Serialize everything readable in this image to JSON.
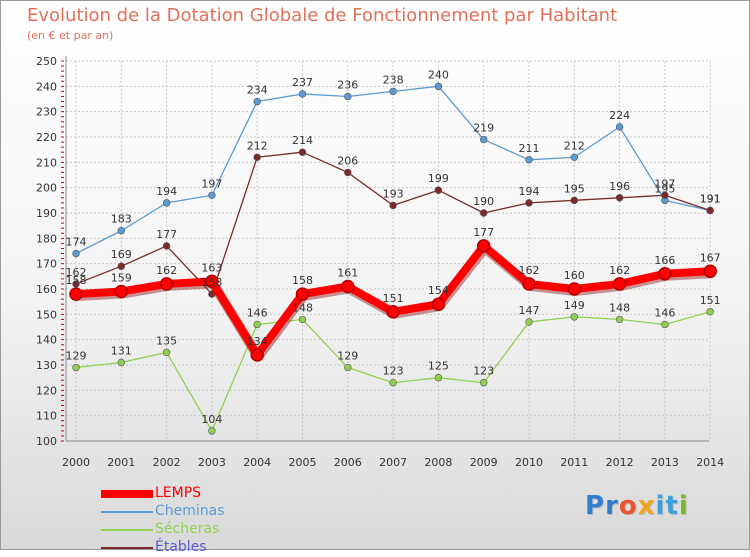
{
  "header": {
    "title": "Evolution de la Dotation Globale de Fonctionnement par Habitant",
    "subtitle": "(en € et par an)"
  },
  "branding": {
    "logo_letters": [
      {
        "ch": "P",
        "color": "#2f7fd0"
      },
      {
        "ch": "r",
        "color": "#2f7fd0"
      },
      {
        "ch": "o",
        "color": "#e8552e"
      },
      {
        "ch": "x",
        "color": "#f2a41c"
      },
      {
        "ch": "i",
        "color": "#3aa2d8"
      },
      {
        "ch": "t",
        "color": "#3aa2d8"
      },
      {
        "ch": "i",
        "color": "#7ab82e"
      }
    ]
  },
  "chart_data": {
    "type": "line",
    "title": "Evolution de la Dotation Globale de Fonctionnement par Habitant",
    "subtitle": "(en € et par an)",
    "x": [
      "2000",
      "2001",
      "2002",
      "2003",
      "2004",
      "2005",
      "2006",
      "2007",
      "2008",
      "2009",
      "2010",
      "2011",
      "2012",
      "2013",
      "2014"
    ],
    "ylim": [
      100,
      250
    ],
    "yticks": [
      "100",
      "110",
      "120",
      "130",
      "140",
      "150",
      "160",
      "170",
      "180",
      "190",
      "200",
      "210",
      "220",
      "230",
      "240",
      "250"
    ],
    "grid": true,
    "legend_position": "bottom-left",
    "series": [
      {
        "name": "Cheminas",
        "color": "#5b9bd5",
        "values": [
          174,
          183,
          194,
          197,
          234,
          237,
          236,
          238,
          240,
          219,
          211,
          212,
          224,
          195,
          191
        ]
      },
      {
        "name": "Sécheras",
        "color": "#90d050",
        "values": [
          129,
          131,
          135,
          104,
          146,
          148,
          129,
          123,
          125,
          123,
          147,
          149,
          148,
          146,
          151
        ]
      },
      {
        "name": "Étables",
        "color": "#7a2a2a",
        "values": [
          162,
          169,
          177,
          158,
          212,
          214,
          206,
          193,
          199,
          190,
          194,
          195,
          196,
          197,
          191
        ]
      },
      {
        "name": "LEMPS",
        "color": "#ff0000",
        "values": [
          158,
          159,
          162,
          163,
          134,
          158,
          161,
          151,
          154,
          177,
          162,
          160,
          162,
          166,
          167
        ]
      }
    ]
  }
}
